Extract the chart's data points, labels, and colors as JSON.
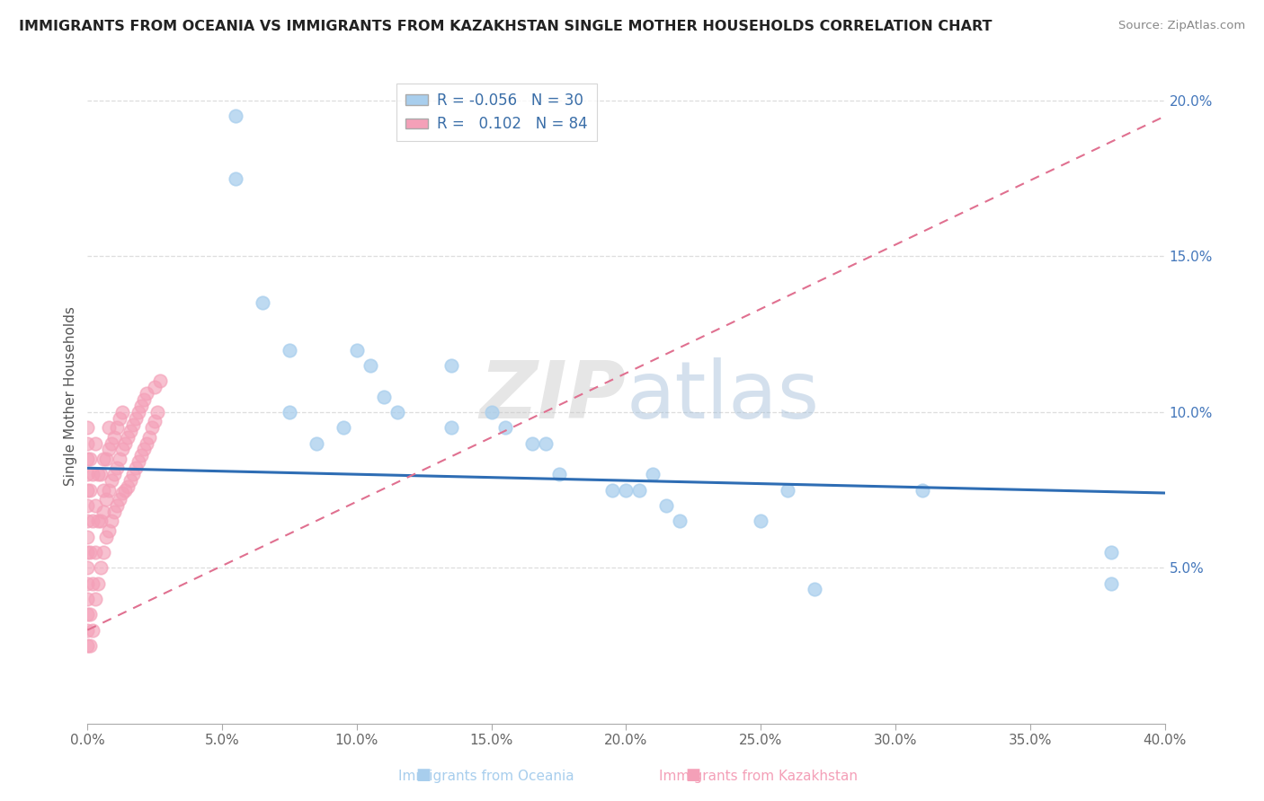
{
  "title": "IMMIGRANTS FROM OCEANIA VS IMMIGRANTS FROM KAZAKHSTAN SINGLE MOTHER HOUSEHOLDS CORRELATION CHART",
  "source": "Source: ZipAtlas.com",
  "xlabel_oceania": "Immigrants from Oceania",
  "xlabel_kazakhstan": "Immigrants from Kazakhstan",
  "ylabel": "Single Mother Households",
  "xlim": [
    0.0,
    0.4
  ],
  "ylim": [
    0.0,
    0.21
  ],
  "xticks": [
    0.0,
    0.05,
    0.1,
    0.15,
    0.2,
    0.25,
    0.3,
    0.35,
    0.4
  ],
  "yticks_right": [
    0.05,
    0.1,
    0.15,
    0.2
  ],
  "legend_R_oceania": "-0.056",
  "legend_N_oceania": "30",
  "legend_R_kazakhstan": "0.102",
  "legend_N_kazakhstan": "84",
  "color_oceania": "#A8CEED",
  "color_kazakhstan": "#F4A0B8",
  "trend_color_oceania": "#2E6DB4",
  "trend_color_kazakhstan": "#E07090",
  "watermark_zip": "ZIP",
  "watermark_atlas": "atlas",
  "oceania_x": [
    0.055,
    0.055,
    0.065,
    0.075,
    0.075,
    0.085,
    0.095,
    0.1,
    0.105,
    0.11,
    0.115,
    0.135,
    0.135,
    0.15,
    0.155,
    0.165,
    0.17,
    0.175,
    0.195,
    0.2,
    0.205,
    0.21,
    0.215,
    0.22,
    0.25,
    0.26,
    0.27,
    0.31,
    0.38,
    0.38
  ],
  "oceania_y": [
    0.195,
    0.175,
    0.135,
    0.12,
    0.1,
    0.09,
    0.095,
    0.12,
    0.115,
    0.105,
    0.1,
    0.115,
    0.095,
    0.1,
    0.095,
    0.09,
    0.09,
    0.08,
    0.075,
    0.075,
    0.075,
    0.08,
    0.07,
    0.065,
    0.065,
    0.075,
    0.043,
    0.075,
    0.055,
    0.045
  ],
  "kazakhstan_x": [
    0.0,
    0.0,
    0.0,
    0.0,
    0.0,
    0.0,
    0.0,
    0.0,
    0.0,
    0.0,
    0.0,
    0.0,
    0.0,
    0.0,
    0.0,
    0.001,
    0.001,
    0.001,
    0.001,
    0.001,
    0.002,
    0.002,
    0.002,
    0.002,
    0.003,
    0.003,
    0.003,
    0.003,
    0.004,
    0.004,
    0.004,
    0.005,
    0.005,
    0.005,
    0.006,
    0.006,
    0.006,
    0.006,
    0.007,
    0.007,
    0.007,
    0.008,
    0.008,
    0.008,
    0.008,
    0.009,
    0.009,
    0.009,
    0.01,
    0.01,
    0.01,
    0.011,
    0.011,
    0.011,
    0.012,
    0.012,
    0.012,
    0.013,
    0.013,
    0.013,
    0.014,
    0.014,
    0.015,
    0.015,
    0.016,
    0.016,
    0.017,
    0.017,
    0.018,
    0.018,
    0.019,
    0.019,
    0.02,
    0.02,
    0.021,
    0.021,
    0.022,
    0.022,
    0.023,
    0.024,
    0.025,
    0.025,
    0.026,
    0.027
  ],
  "kazakhstan_y": [
    0.025,
    0.03,
    0.035,
    0.04,
    0.045,
    0.05,
    0.055,
    0.06,
    0.065,
    0.07,
    0.075,
    0.08,
    0.085,
    0.09,
    0.095,
    0.025,
    0.035,
    0.055,
    0.075,
    0.085,
    0.03,
    0.045,
    0.065,
    0.08,
    0.04,
    0.055,
    0.07,
    0.09,
    0.045,
    0.065,
    0.08,
    0.05,
    0.065,
    0.08,
    0.055,
    0.068,
    0.075,
    0.085,
    0.06,
    0.072,
    0.085,
    0.062,
    0.075,
    0.088,
    0.095,
    0.065,
    0.078,
    0.09,
    0.068,
    0.08,
    0.092,
    0.07,
    0.082,
    0.095,
    0.072,
    0.085,
    0.098,
    0.074,
    0.088,
    0.1,
    0.075,
    0.09,
    0.076,
    0.092,
    0.078,
    0.094,
    0.08,
    0.096,
    0.082,
    0.098,
    0.084,
    0.1,
    0.086,
    0.102,
    0.088,
    0.104,
    0.09,
    0.106,
    0.092,
    0.095,
    0.097,
    0.108,
    0.1,
    0.11
  ],
  "trend_oceania_x0": 0.0,
  "trend_oceania_y0": 0.082,
  "trend_oceania_x1": 0.4,
  "trend_oceania_y1": 0.074,
  "trend_kazakhstan_x0": 0.0,
  "trend_kazakhstan_y0": 0.03,
  "trend_kazakhstan_x1": 0.4,
  "trend_kazakhstan_y1": 0.195
}
